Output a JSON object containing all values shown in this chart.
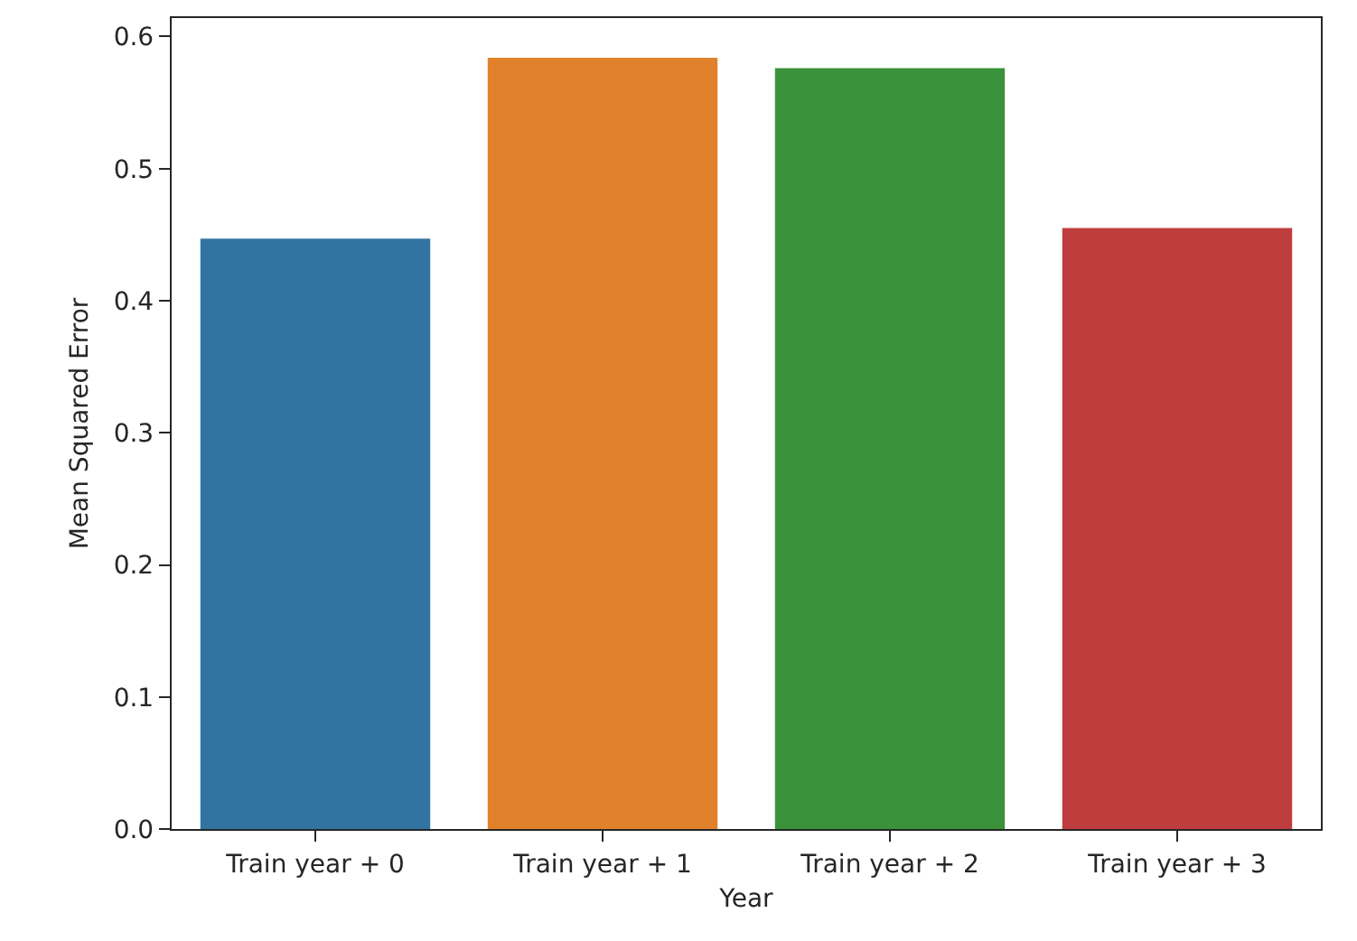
{
  "chart_data": {
    "type": "bar",
    "xlabel": "Year",
    "ylabel": "Mean Squared Error",
    "categories": [
      "Train year + 0",
      "Train year + 1",
      "Train year + 2",
      "Train year + 3"
    ],
    "values": [
      0.447,
      0.584,
      0.576,
      0.455
    ],
    "colors": [
      "#3274a1",
      "#e1812c",
      "#3a923a",
      "#c03d3e"
    ],
    "ylim": [
      0,
      0.614
    ],
    "yticks": [
      {
        "value": 0,
        "label": "0.0"
      },
      0.1,
      0.2,
      0.3,
      0.4,
      0.5,
      0.6
    ],
    "grid": false
  }
}
